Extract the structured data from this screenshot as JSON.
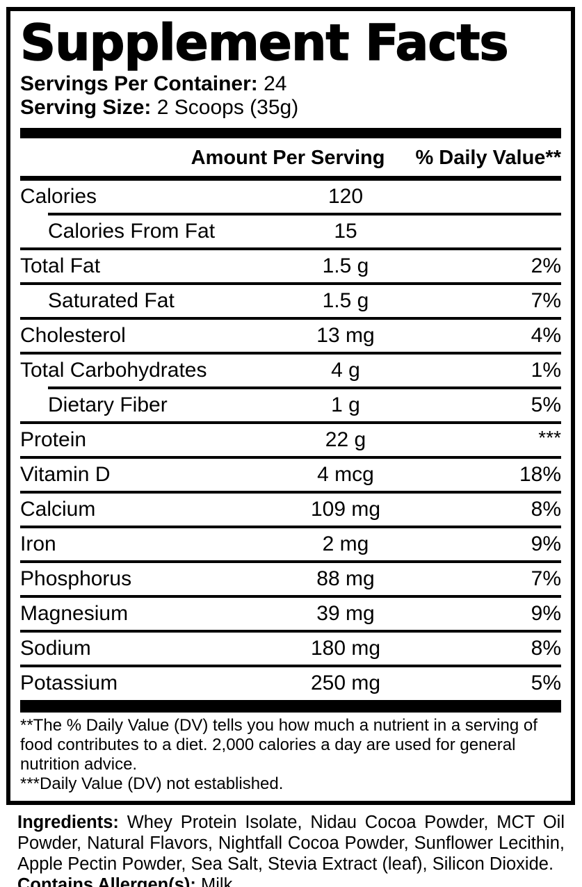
{
  "title": "Supplement Facts",
  "servings": {
    "label": "Servings Per Container:",
    "value": " 24"
  },
  "serving_size": {
    "label": "Serving Size:",
    "value": " 2 Scoops (35g)"
  },
  "columns": {
    "amount": "Amount Per Serving",
    "daily_value": "% Daily Value**"
  },
  "rows": [
    {
      "name": "Calories",
      "amount": "120",
      "dv": "",
      "indent": false,
      "sep_indent": false
    },
    {
      "name": "Calories From Fat",
      "amount": "15",
      "dv": "",
      "indent": true,
      "sep_indent": true
    },
    {
      "name": "Total Fat",
      "amount": "1.5 g",
      "dv": "2%",
      "indent": false,
      "sep_indent": false
    },
    {
      "name": "Saturated Fat",
      "amount": "1.5 g",
      "dv": "7%",
      "indent": true,
      "sep_indent": false
    },
    {
      "name": "Cholesterol",
      "amount": "13 mg",
      "dv": "4%",
      "indent": false,
      "sep_indent": false
    },
    {
      "name": "Total Carbohydrates",
      "amount": "4 g",
      "dv": "1%",
      "indent": false,
      "sep_indent": false
    },
    {
      "name": "Dietary Fiber",
      "amount": "1 g",
      "dv": "5%",
      "indent": true,
      "sep_indent": true
    },
    {
      "name": "Protein",
      "amount": "22 g",
      "dv": "***",
      "indent": false,
      "sep_indent": false,
      "dv_stars": true
    },
    {
      "name": "Vitamin D",
      "amount": "4 mcg",
      "dv": "18%",
      "indent": false,
      "sep_indent": false
    },
    {
      "name": "Calcium",
      "amount": "109 mg",
      "dv": "8%",
      "indent": false,
      "sep_indent": false
    },
    {
      "name": "Iron",
      "amount": "2 mg",
      "dv": "9%",
      "indent": false,
      "sep_indent": false
    },
    {
      "name": "Phosphorus",
      "amount": "88 mg",
      "dv": "7%",
      "indent": false,
      "sep_indent": false
    },
    {
      "name": "Magnesium",
      "amount": "39 mg",
      "dv": "9%",
      "indent": false,
      "sep_indent": false
    },
    {
      "name": "Sodium",
      "amount": "180 mg",
      "dv": "8%",
      "indent": false,
      "sep_indent": false
    },
    {
      "name": "Potassium",
      "amount": "250 mg",
      "dv": "5%",
      "indent": false,
      "sep_indent": false
    }
  ],
  "footnotes": [
    "**The % Daily Value (DV) tells you how much a nutrient in a serving of food contributes to a diet. 2,000 calories a day are used for general nutrition advice.",
    "***Daily Value (DV) not established."
  ],
  "ingredients": {
    "label": "Ingredients:",
    "text": " Whey Protein Isolate, Nidau Cocoa Powder, MCT Oil Powder, Natural Flavors, Nightfall Cocoa Powder, Sunflower Lecithin, Apple Pectin Powder, Sea Salt, Stevia Extract (leaf), Silicon Dioxide."
  },
  "allergens": {
    "label": "Contains Allergen(s):",
    "value": " Milk"
  },
  "colors": {
    "text": "#000000",
    "background": "#ffffff"
  }
}
